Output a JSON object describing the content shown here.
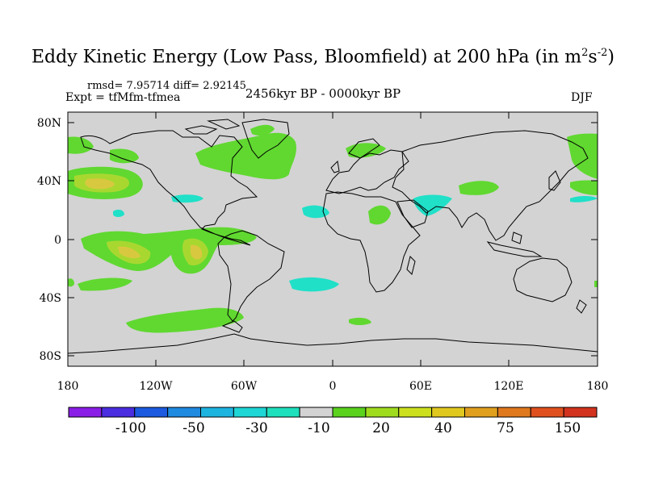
{
  "title": {
    "text": "Eddy Kinetic Energy (Low Pass, Bloomfield) at 200 hPa (in m",
    "units_m_exp": "2",
    "units_s": "s",
    "units_s_exp": "-2",
    "close": ")"
  },
  "stats_text": "rmsd= 7.95714 diff= 2.92145",
  "expt_text": "Expt = tfMfm-tfmea",
  "period_text": "2456kyr BP - 0000kyr BP",
  "season_text": "DJF",
  "map": {
    "lon_ticks": [
      "180",
      "120W",
      "60W",
      "0",
      "60E",
      "120E",
      "180"
    ],
    "lat_ticks": [
      "80N",
      "40N",
      "0",
      "40S",
      "80S"
    ],
    "land_color": "#d3d3d3",
    "coast_color": "#000000"
  },
  "colorbar": {
    "colors": [
      "#8a1ee6",
      "#4a2ee0",
      "#1c5ae0",
      "#1e8ae0",
      "#1eb4e0",
      "#1ed6d6",
      "#1ee0bc",
      "#d3d3d3",
      "#5ad21e",
      "#a0dc1e",
      "#cde01e",
      "#e0c81e",
      "#e0a01e",
      "#e0781e",
      "#e0501e",
      "#d2321e"
    ],
    "labels": [
      "-100",
      "-50",
      "-30",
      "-10",
      "20",
      "40",
      "75",
      "150"
    ]
  },
  "legend_colors": {
    "teal": "#20e0c8",
    "green": "#60d830",
    "yellowgreen": "#a8d830",
    "yellow": "#d8d040",
    "orange": "#e8b840"
  }
}
